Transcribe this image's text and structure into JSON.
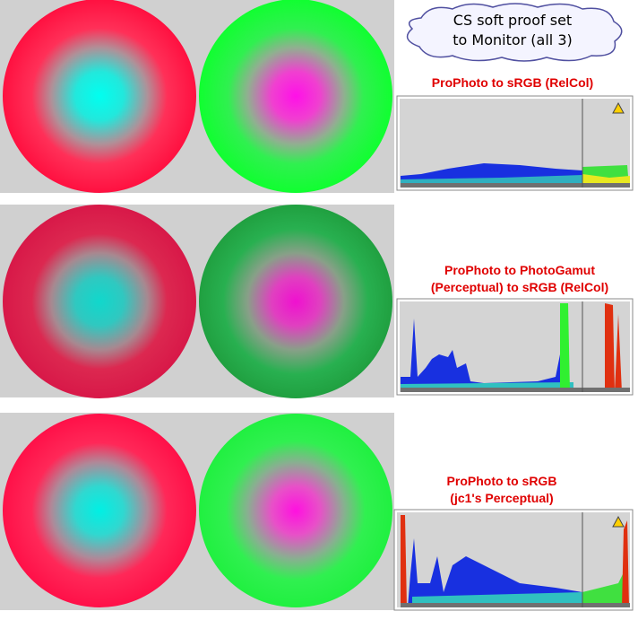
{
  "callout": {
    "lines": [
      "CS soft proof set",
      "to Monitor (all 3)"
    ]
  },
  "panels": [
    {
      "label": [
        "ProPhoto to sRGB (RelCol)"
      ]
    },
    {
      "label": [
        "ProPhoto to PhotoGamut",
        "(Perceptual) to sRGB (RelCol)"
      ]
    },
    {
      "label": [
        "ProPhoto to sRGB",
        "(jc1's Perceptual)"
      ]
    }
  ]
}
